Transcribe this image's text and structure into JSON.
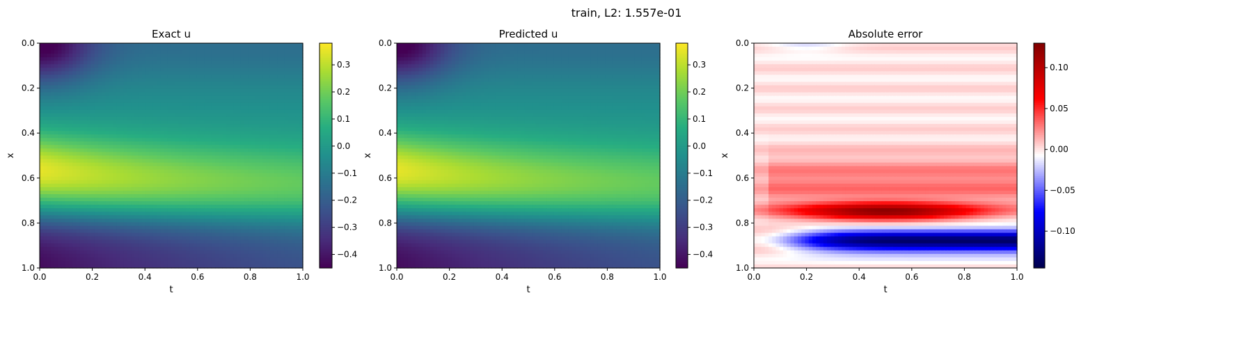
{
  "suptitle": "train, L2: 1.557e-01",
  "chart_data": [
    {
      "type": "heatmap",
      "title": "Exact u",
      "xlabel": "t",
      "ylabel": "x",
      "xlim": [
        0.0,
        1.0
      ],
      "ylim": [
        1.0,
        0.0
      ],
      "xticks": [
        "0.0",
        "0.2",
        "0.4",
        "0.6",
        "0.8",
        "1.0"
      ],
      "yticks": [
        "0.0",
        "0.2",
        "0.4",
        "0.6",
        "0.8",
        "1.0"
      ],
      "colormap": "viridis",
      "clim": [
        -0.45,
        0.38
      ],
      "colorbar_ticks": [
        "0.3",
        "0.2",
        "0.1",
        "0.0",
        "−0.1",
        "−0.2",
        "−0.3",
        "−0.4"
      ],
      "colorbar_values": [
        0.3,
        0.2,
        0.1,
        0.0,
        -0.1,
        -0.2,
        -0.3,
        -0.4
      ]
    },
    {
      "type": "heatmap",
      "title": "Predicted u",
      "xlabel": "t",
      "ylabel": "x",
      "xlim": [
        0.0,
        1.0
      ],
      "ylim": [
        1.0,
        0.0
      ],
      "xticks": [
        "0.0",
        "0.2",
        "0.4",
        "0.6",
        "0.8",
        "1.0"
      ],
      "yticks": [
        "0.0",
        "0.2",
        "0.4",
        "0.6",
        "0.8",
        "1.0"
      ],
      "colormap": "viridis",
      "clim": [
        -0.45,
        0.38
      ],
      "colorbar_ticks": [
        "0.3",
        "0.2",
        "0.1",
        "0.0",
        "−0.1",
        "−0.2",
        "−0.3",
        "−0.4"
      ],
      "colorbar_values": [
        0.3,
        0.2,
        0.1,
        0.0,
        -0.1,
        -0.2,
        -0.3,
        -0.4
      ]
    },
    {
      "type": "heatmap",
      "title": "Absolute error",
      "xlabel": "t",
      "ylabel": "x",
      "xlim": [
        0.0,
        1.0
      ],
      "ylim": [
        1.0,
        0.0
      ],
      "xticks": [
        "0.0",
        "0.2",
        "0.4",
        "0.6",
        "0.8",
        "1.0"
      ],
      "yticks": [
        "0.0",
        "0.2",
        "0.4",
        "0.6",
        "0.8",
        "1.0"
      ],
      "colormap": "seismic",
      "clim": [
        -0.145,
        0.13
      ],
      "colorbar_ticks": [
        "0.10",
        "0.05",
        "0.00",
        "−0.05",
        "−0.10"
      ],
      "colorbar_values": [
        0.1,
        0.05,
        0.0,
        -0.05,
        -0.1
      ]
    }
  ]
}
